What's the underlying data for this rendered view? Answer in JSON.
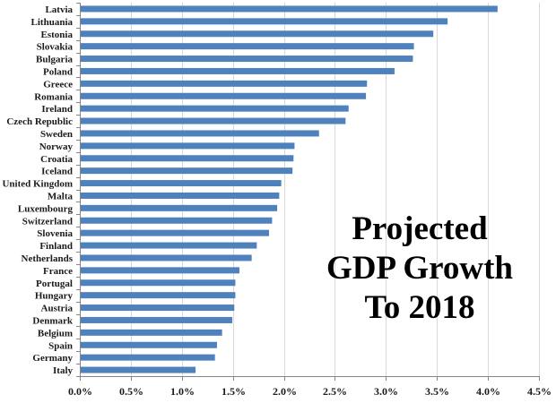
{
  "chart_data": {
    "type": "bar",
    "orientation": "horizontal",
    "title": "",
    "xlabel": "",
    "ylabel": "",
    "xlim": [
      0,
      0.045
    ],
    "x_ticks": [
      0,
      0.005,
      0.01,
      0.015,
      0.02,
      0.025,
      0.03,
      0.035,
      0.04,
      0.045
    ],
    "x_tick_labels": [
      "0.0%",
      "0.5%",
      "1.0%",
      "1.5%",
      "2.0%",
      "2.5%",
      "3.0%",
      "3.5%",
      "4.0%",
      "4.5%"
    ],
    "grid": true,
    "bar_color": "#4f81bd",
    "categories": [
      "Latvia",
      "Lithuania",
      "Estonia",
      "Slovakia",
      "Bulgaria",
      "Poland",
      "Greece",
      "Romania",
      "Ireland",
      "Czech Republic",
      "Sweden",
      "Norway",
      "Croatia",
      "Iceland",
      "United Kingdom",
      "Malta",
      "Luxembourg",
      "Switzerland",
      "Slovenia",
      "Finland",
      "Netherlands",
      "France",
      "Portugal",
      "Hungary",
      "Austria",
      "Denmark",
      "Belgium",
      "Spain",
      "Germany",
      "Italy"
    ],
    "values": [
      0.0409,
      0.036,
      0.0346,
      0.0327,
      0.0326,
      0.0308,
      0.0281,
      0.028,
      0.0263,
      0.026,
      0.0234,
      0.021,
      0.0209,
      0.0208,
      0.0197,
      0.0195,
      0.0193,
      0.0188,
      0.0185,
      0.0173,
      0.0168,
      0.0156,
      0.0152,
      0.0152,
      0.0151,
      0.0149,
      0.0139,
      0.0134,
      0.0132,
      0.0113
    ],
    "annotation": [
      "Projected",
      "GDP Growth",
      "To 2018"
    ]
  }
}
